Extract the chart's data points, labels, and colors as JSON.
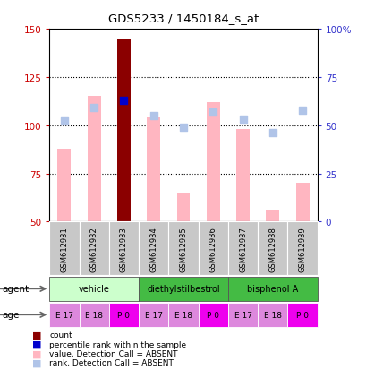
{
  "title": "GDS5233 / 1450184_s_at",
  "samples": [
    "GSM612931",
    "GSM612932",
    "GSM612933",
    "GSM612934",
    "GSM612935",
    "GSM612936",
    "GSM612937",
    "GSM612938",
    "GSM612939"
  ],
  "count_values": [
    null,
    null,
    145,
    null,
    null,
    null,
    null,
    null,
    null
  ],
  "count_color": "#8B0000",
  "value_absent": [
    88,
    115,
    null,
    104,
    65,
    112,
    98,
    56,
    70
  ],
  "value_absent_color": "#FFB6C1",
  "rank_absent": [
    102,
    109,
    null,
    105,
    99,
    107,
    103,
    96,
    108
  ],
  "rank_absent_color": "#B0C4E8",
  "percentile_rank": [
    null,
    null,
    113,
    null,
    null,
    null,
    null,
    null,
    null
  ],
  "percentile_rank_color": "#0000CC",
  "ylim_left": [
    50,
    150
  ],
  "ylim_right": [
    0,
    100
  ],
  "yticks_left": [
    50,
    75,
    100,
    125,
    150
  ],
  "yticks_right": [
    0,
    25,
    50,
    75,
    100
  ],
  "ytick_labels_left": [
    "50",
    "75",
    "100",
    "125",
    "150"
  ],
  "ytick_labels_right": [
    "0",
    "25",
    "50",
    "75",
    "100%"
  ],
  "grid_values": [
    75,
    100,
    125
  ],
  "agents": [
    {
      "label": "vehicle",
      "start": 0,
      "end": 2,
      "color": "#CCFFCC"
    },
    {
      "label": "diethylstilbestrol",
      "start": 3,
      "end": 5,
      "color": "#44BB44"
    },
    {
      "label": "bisphenol A",
      "start": 6,
      "end": 8,
      "color": "#44BB44"
    }
  ],
  "ages": [
    "E 17",
    "E 18",
    "P 0",
    "E 17",
    "E 18",
    "P 0",
    "E 17",
    "E 18",
    "P 0"
  ],
  "age_colors_map": {
    "E 17": "#DD88DD",
    "E 18": "#DD88DD",
    "P 0": "#EE00EE"
  },
  "legend_items": [
    {
      "color": "#8B0000",
      "label": "count"
    },
    {
      "color": "#0000CC",
      "label": "percentile rank within the sample"
    },
    {
      "color": "#FFB6C1",
      "label": "value, Detection Call = ABSENT"
    },
    {
      "color": "#B0C4E8",
      "label": "rank, Detection Call = ABSENT"
    }
  ],
  "sample_bg_color": "#C8C8C8",
  "left_axis_color": "#CC0000",
  "right_axis_color": "#3333CC",
  "bar_width": 0.45
}
